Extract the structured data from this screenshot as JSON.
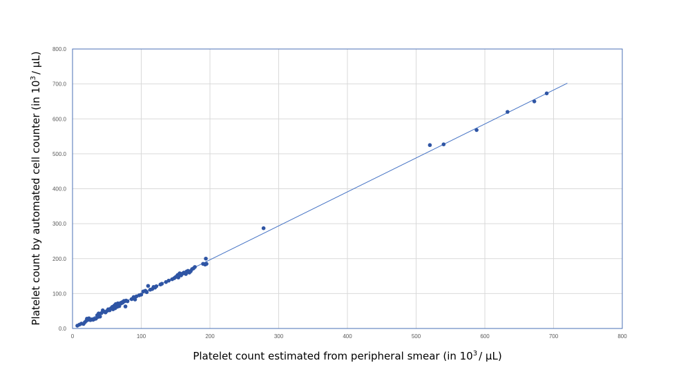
{
  "colors": {
    "point": "#2F55A4",
    "trendline": "#4472C4",
    "grid": "#D9D9D9",
    "frame": "#4A6FB5"
  },
  "chart_data": {
    "type": "scatter",
    "title": "",
    "xlabel_main": "Platelet count estimated from peripheral smear (in 10",
    "xlabel_sup": "3",
    "xlabel_end": "/ µL)",
    "ylabel_main": "Platelet count by automated cell counter (in 10",
    "ylabel_sup": "3",
    "ylabel_end": "/ µL)",
    "xlim": [
      0,
      800
    ],
    "ylim": [
      0,
      800
    ],
    "xticks": [
      "0",
      "100",
      "200",
      "300",
      "400",
      "500",
      "600",
      "700",
      "800"
    ],
    "yticks": [
      "0.0",
      "100.0",
      "200.0",
      "300.0",
      "400.0",
      "500.0",
      "600.0",
      "700.0",
      "800.0"
    ],
    "grid": true,
    "trendline": {
      "x": [
        8,
        720
      ],
      "y": [
        10,
        702
      ]
    },
    "series": [
      {
        "points": [
          [
            7,
            8
          ],
          [
            10,
            11
          ],
          [
            13,
            14
          ],
          [
            16,
            13
          ],
          [
            18,
            18
          ],
          [
            20,
            22
          ],
          [
            21,
            28
          ],
          [
            23,
            25
          ],
          [
            24,
            29
          ],
          [
            26,
            24
          ],
          [
            28,
            26
          ],
          [
            30,
            25
          ],
          [
            32,
            27
          ],
          [
            34,
            28
          ],
          [
            36,
            38
          ],
          [
            37,
            33
          ],
          [
            38,
            43
          ],
          [
            40,
            34
          ],
          [
            42,
            44
          ],
          [
            44,
            52
          ],
          [
            46,
            48
          ],
          [
            48,
            46
          ],
          [
            50,
            50
          ],
          [
            52,
            55
          ],
          [
            54,
            52
          ],
          [
            56,
            58
          ],
          [
            58,
            62
          ],
          [
            59,
            55
          ],
          [
            60,
            60
          ],
          [
            61,
            66
          ],
          [
            62,
            58
          ],
          [
            63,
            70
          ],
          [
            64,
            65
          ],
          [
            65,
            62
          ],
          [
            66,
            72
          ],
          [
            67,
            68
          ],
          [
            68,
            64
          ],
          [
            69,
            70
          ],
          [
            70,
            73
          ],
          [
            71,
            72
          ],
          [
            72,
            75
          ],
          [
            73,
            74
          ],
          [
            74,
            77
          ],
          [
            75,
            79
          ],
          [
            76,
            78
          ],
          [
            77,
            63
          ],
          [
            78,
            80
          ],
          [
            80,
            78
          ],
          [
            86,
            84
          ],
          [
            88,
            86
          ],
          [
            89,
            90
          ],
          [
            90,
            88
          ],
          [
            91,
            83
          ],
          [
            93,
            92
          ],
          [
            97,
            95
          ],
          [
            100,
            97
          ],
          [
            103,
            106
          ],
          [
            106,
            108
          ],
          [
            108,
            104
          ],
          [
            110,
            122
          ],
          [
            113,
            111
          ],
          [
            116,
            113
          ],
          [
            118,
            119
          ],
          [
            120,
            117
          ],
          [
            122,
            121
          ],
          [
            128,
            126
          ],
          [
            130,
            128
          ],
          [
            136,
            133
          ],
          [
            140,
            137
          ],
          [
            145,
            141
          ],
          [
            148,
            144
          ],
          [
            150,
            147
          ],
          [
            152,
            150
          ],
          [
            153,
            153
          ],
          [
            154,
            146
          ],
          [
            155,
            155
          ],
          [
            156,
            158
          ],
          [
            158,
            152
          ],
          [
            160,
            157
          ],
          [
            162,
            160
          ],
          [
            163,
            158
          ],
          [
            165,
            156
          ],
          [
            166,
            163
          ],
          [
            168,
            165
          ],
          [
            170,
            160
          ],
          [
            172,
            164
          ],
          [
            174,
            170
          ],
          [
            176,
            172
          ],
          [
            178,
            176
          ],
          [
            190,
            185
          ],
          [
            193,
            183
          ],
          [
            195,
            185
          ],
          [
            194,
            200
          ],
          [
            278,
            287
          ],
          [
            520,
            525
          ],
          [
            540,
            527
          ],
          [
            588,
            568
          ],
          [
            633,
            620
          ],
          [
            672,
            650
          ],
          [
            690,
            673
          ]
        ]
      }
    ]
  }
}
